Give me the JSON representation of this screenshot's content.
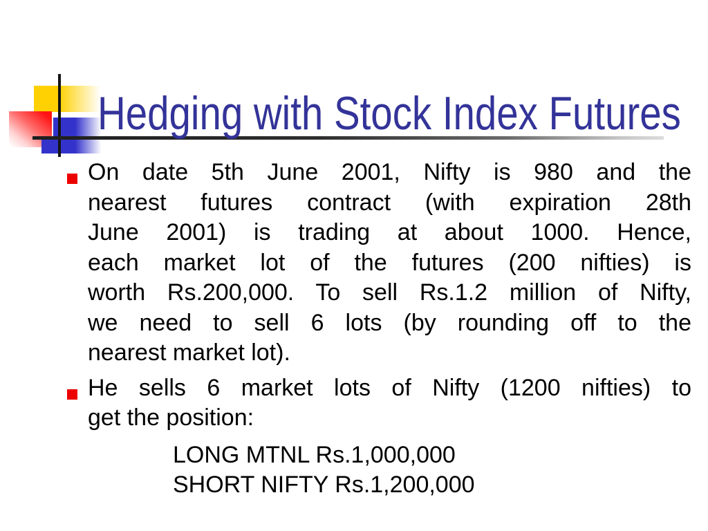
{
  "slide": {
    "title": "Hedging with Stock Index Futures",
    "bullets": [
      {
        "lines": [
          "On date 5th June 2001, Nifty is 980 and the",
          "nearest futures contract (with expiration 28th",
          "June 2001) is trading at about 1000. Hence,",
          "each market lot of the futures (200 nifties) is",
          "worth Rs.200,000. To sell Rs.1.2 million of Nifty,",
          "we need to sell 6 lots (by rounding off to the",
          "nearest market lot)."
        ]
      },
      {
        "lines": [
          "He sells 6 market lots of Nifty (1200 nifties) to",
          "get the position:"
        ]
      }
    ],
    "positions": [
      "LONG MTNL Rs.1,000,000",
      "SHORT NIFTY Rs.1,200,000"
    ],
    "colors": {
      "title_text": "#333399",
      "body_text": "#000000",
      "bullet_marker": "#EC0000",
      "accent_yellow": "#FFD103",
      "accent_red": "#FF1414",
      "accent_blue": "#3333CC",
      "rule_dark": "#1E1E1E",
      "rule_light": "#DCDCDC",
      "background": "#FFFFFF"
    }
  }
}
